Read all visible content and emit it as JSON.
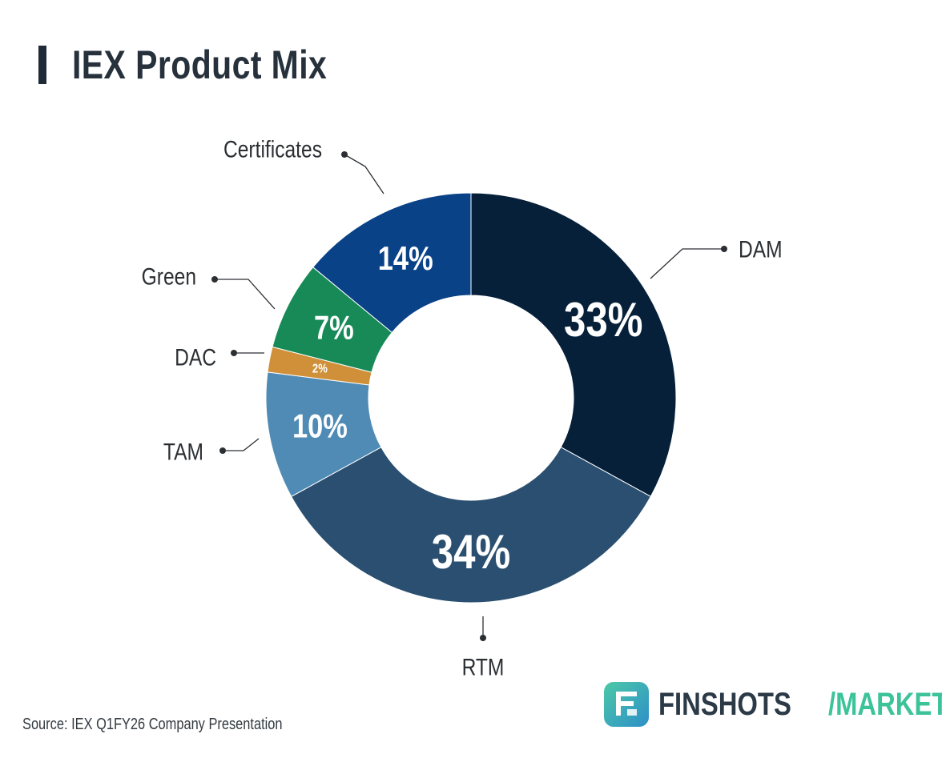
{
  "header": {
    "title": "IEX Product Mix"
  },
  "footer": {
    "source": "Source: IEX Q1FY26 Company Presentation",
    "brand_name": "FINSHOTS",
    "brand_section": "/MARKETS"
  },
  "chart_data": {
    "type": "pie",
    "style": "donut",
    "title": "IEX Product Mix",
    "categories": [
      "DAM",
      "RTM",
      "TAM",
      "DAC",
      "Green",
      "Certificates"
    ],
    "values": [
      33,
      34,
      10,
      2,
      7,
      14
    ],
    "value_labels": [
      "33%",
      "34%",
      "10%",
      "2%",
      "7%",
      "14%"
    ],
    "colors": [
      "#06203a",
      "#2a4f70",
      "#4f8bb5",
      "#d0903a",
      "#178a57",
      "#0a4287"
    ]
  }
}
